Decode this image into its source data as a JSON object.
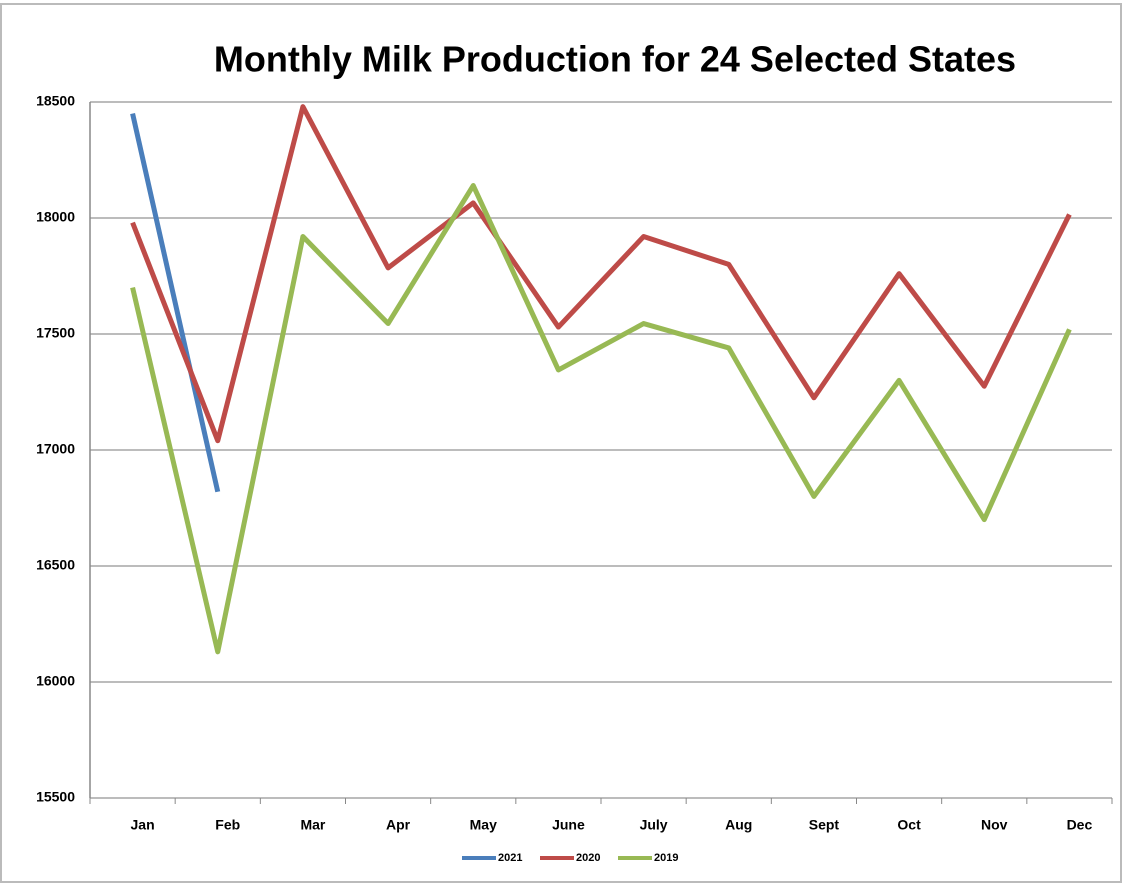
{
  "chart_data": {
    "type": "line",
    "title": "Monthly Milk Production for 24 Selected States",
    "categories": [
      "Jan",
      "Feb",
      "Mar",
      "Apr",
      "May",
      "June",
      "July",
      "Aug",
      "Sept",
      "Oct",
      "Nov",
      "Dec"
    ],
    "series": [
      {
        "name": "2021",
        "color": "#4a7ebb",
        "values": [
          18450,
          16820,
          null,
          null,
          null,
          null,
          null,
          null,
          null,
          null,
          null,
          null
        ]
      },
      {
        "name": "2020",
        "color": "#be4b48",
        "values": [
          17980,
          17040,
          18480,
          17785,
          18065,
          17530,
          17920,
          17800,
          17225,
          17760,
          17275,
          18015
        ]
      },
      {
        "name": "2019",
        "color": "#98b954",
        "values": [
          17700,
          16130,
          17920,
          17545,
          18140,
          17345,
          17545,
          17440,
          16800,
          17300,
          16700,
          17520
        ]
      }
    ],
    "ylim": [
      15500,
      18500
    ],
    "yticks": [
      15500,
      16000,
      16500,
      17000,
      17500,
      18000,
      18500
    ],
    "grid": true,
    "legend": "bottom"
  }
}
